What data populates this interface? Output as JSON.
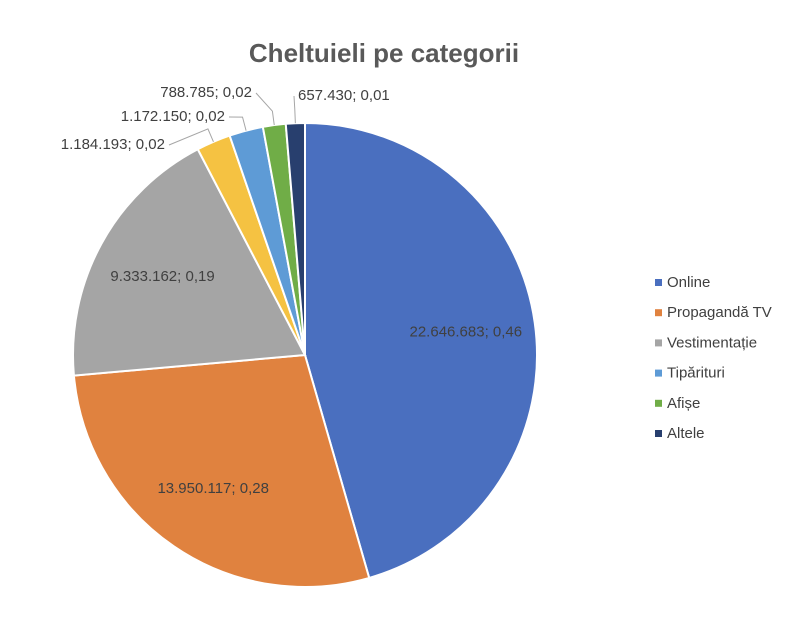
{
  "chart_data": {
    "type": "pie",
    "title": "Cheltuieli pe categorii",
    "categories": [
      "Online",
      "Propagandă TV",
      "Vestimentație",
      null,
      "Tipărituri",
      "Afișe",
      "Altele"
    ],
    "values": [
      22646683,
      13950117,
      9333162,
      1184193,
      1172150,
      788785,
      657430
    ],
    "value_labels": [
      "22.646.683; 0,46",
      "13.950.117; 0,28",
      "9.333.162; 0,19",
      "1.184.193; 0,02",
      "1.172.150; 0,02",
      "788.785; 0,02",
      "657.430; 0,01"
    ],
    "colors": [
      "#4a6fbf",
      "#e0823f",
      "#a5a5a5",
      "#f5c242",
      "#5e9bd6",
      "#70ad47",
      "#283f6e"
    ],
    "legend": "right"
  }
}
